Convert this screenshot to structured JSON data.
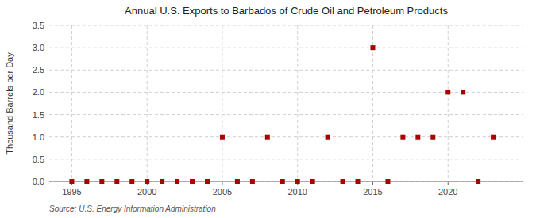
{
  "chart_data": {
    "type": "scatter",
    "title": "Annual U.S. Exports to Barbados of Crude Oil and Petroleum Products",
    "ylabel": "Thousand Barrels per Day",
    "source": "Source: U.S. Energy Information Administration",
    "x": [
      1995,
      1996,
      1997,
      1998,
      1999,
      2000,
      2001,
      2002,
      2003,
      2004,
      2005,
      2006,
      2007,
      2008,
      2009,
      2010,
      2011,
      2012,
      2013,
      2014,
      2015,
      2016,
      2017,
      2018,
      2019,
      2020,
      2021,
      2022,
      2023
    ],
    "values": [
      0.0,
      0.0,
      0.0,
      0.0,
      0.0,
      0.0,
      0.0,
      0.0,
      0.0,
      0.0,
      1.0,
      0.0,
      0.0,
      1.0,
      0.0,
      0.0,
      0.0,
      1.0,
      0.0,
      0.0,
      3.0,
      0.0,
      1.0,
      1.0,
      1.0,
      2.0,
      2.0,
      0.0,
      1.0
    ],
    "color": "#aa0000",
    "marker": "square",
    "xlim": [
      1993.5,
      2025
    ],
    "ylim": [
      0.0,
      3.5
    ],
    "xticks": [
      1995,
      2000,
      2005,
      2010,
      2015,
      2020
    ],
    "yticks": [
      {
        "value": 0.0,
        "label": "0.0"
      },
      0.5,
      {
        "value": 1.0,
        "label": "1.0"
      },
      1.5,
      {
        "value": 2.0,
        "label": "2.0"
      },
      2.5,
      {
        "value": 3.0,
        "label": "3.0"
      },
      3.5
    ],
    "grid": true
  }
}
